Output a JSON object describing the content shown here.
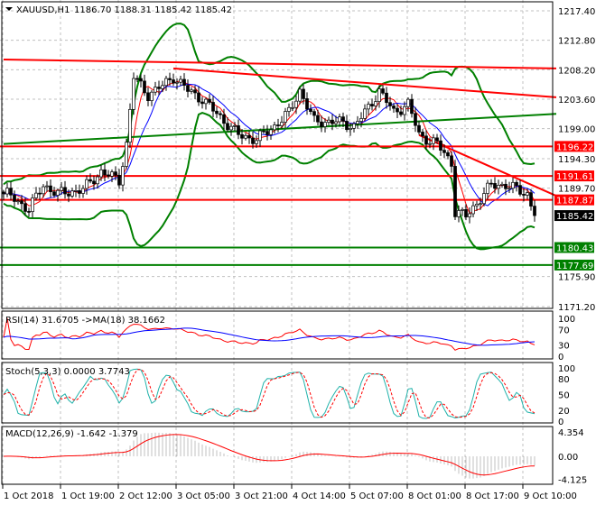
{
  "header": {
    "symbol_label": "XAUUSD,H1",
    "ohlc": "1186.70 1188.31 1185.42 1185.42"
  },
  "chart_data": {
    "type": "candlestick",
    "symbol": "XAUUSD",
    "timeframe": "H1",
    "ylim": [
      1171.2,
      1217.4
    ],
    "price_ticks": [
      "1217.40",
      "1212.80",
      "1208.20",
      "1203.60",
      "1199.00",
      "1194.30",
      "1189.70",
      "1175.90",
      "1171.20"
    ],
    "current_price": "1185.42",
    "anchor_closes": [
      [
        1,
        1188.8
      ],
      [
        7,
        1186.4
      ],
      [
        11,
        1190.2
      ],
      [
        15,
        1188.8
      ],
      [
        22,
        1189.5
      ],
      [
        27,
        1192.3
      ],
      [
        32,
        1190.9
      ],
      [
        34,
        1196.6
      ],
      [
        36,
        1207.1
      ],
      [
        40,
        1204.3
      ],
      [
        44,
        1205.7
      ],
      [
        47,
        1207.1
      ],
      [
        51,
        1205.0
      ],
      [
        55,
        1203.6
      ],
      [
        60,
        1200.8
      ],
      [
        65,
        1198.0
      ],
      [
        70,
        1197.3
      ],
      [
        75,
        1199.4
      ],
      [
        79,
        1201.5
      ],
      [
        82,
        1205.0
      ],
      [
        86,
        1200.1
      ],
      [
        92,
        1200.1
      ],
      [
        97,
        1199.4
      ],
      [
        101,
        1202.2
      ],
      [
        104,
        1205.0
      ],
      [
        108,
        1201.5
      ],
      [
        112,
        1202.9
      ],
      [
        115,
        1198.0
      ],
      [
        120,
        1196.6
      ],
      [
        124,
        1193.7
      ],
      [
        125,
        1186.0
      ],
      [
        128,
        1185.3
      ],
      [
        131,
        1187.4
      ],
      [
        135,
        1190.2
      ],
      [
        139,
        1190.2
      ],
      [
        142,
        1189.5
      ],
      [
        145,
        1188.8
      ],
      [
        147,
        1185.42
      ]
    ],
    "levels": [
      {
        "price": 1196.22,
        "label": "1196.22",
        "color": "#ff0000"
      },
      {
        "price": 1191.61,
        "label": "1191.61",
        "color": "#ff0000"
      },
      {
        "price": 1187.87,
        "label": "1187.87",
        "color": "#ff0000"
      },
      {
        "price": 1180.43,
        "label": "1180.43",
        "color": "#008000"
      },
      {
        "price": 1177.69,
        "label": "1177.69",
        "color": "#008000"
      }
    ],
    "trend_lines": [
      {
        "from": [
          0,
          1209.8
        ],
        "to": [
          153,
          1208.4
        ],
        "color": "#ff0000"
      },
      {
        "from": [
          47,
          1208.4
        ],
        "to": [
          153,
          1203.9
        ],
        "color": "#ff0000"
      },
      {
        "from": [
          0,
          1196.6
        ],
        "to": [
          153,
          1201.3
        ],
        "color": "#008000"
      },
      {
        "from": [
          115,
          1198.0
        ],
        "to": [
          153,
          1188.5
        ],
        "color": "#ff0000"
      }
    ],
    "time_labels": [
      "1 Oct 2018",
      "1 Oct 19:00",
      "2 Oct 12:00",
      "3 Oct 05:00",
      "3 Oct 21:00",
      "4 Oct 14:00",
      "5 Oct 07:00",
      "8 Oct 01:00",
      "8 Oct 17:00",
      "9 Oct 10:00"
    ],
    "indicators": {
      "rsi": {
        "label": "RSI(14) 31.6705  ->MA(18) 38.1662",
        "ticks": [
          "100",
          "70",
          "30",
          "0"
        ]
      },
      "stoch": {
        "label": "Stoch(5,3,3) 0.0000 3.7743",
        "ticks": [
          "100",
          "80",
          "50",
          "20",
          "0"
        ]
      },
      "macd": {
        "label": "MACD(12,26,9) -1.642 -1.379",
        "ticks": [
          "4.354",
          "0.00",
          "-4.125"
        ]
      }
    },
    "colors": {
      "bands": "#008000",
      "ma_fast": "#ff0000",
      "ma_slow": "#0000ff",
      "rsi": "#ff0000",
      "rsi_ma": "#0000ff",
      "stoch_main": "#20b2aa",
      "stoch_signal": "#ff0000",
      "macd_signal": "#ff0000",
      "macd_hist": "#c0c0c0"
    }
  }
}
